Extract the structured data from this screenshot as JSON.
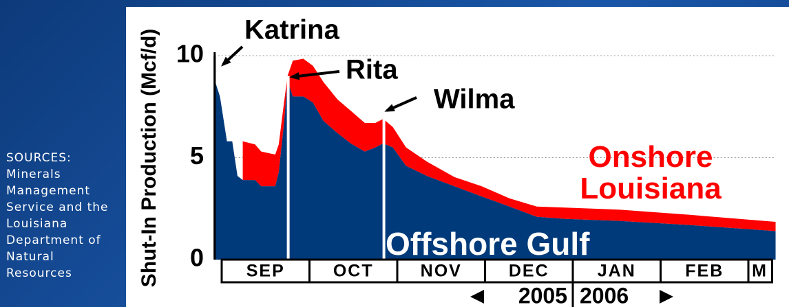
{
  "sources": "SOURCES: Minerals Management Service and the Louisiana Department of Natural Resources",
  "chart_data": {
    "type": "stacked-area",
    "y_label": "Shut-In Production (Mcf/d)",
    "x": [
      -0.08,
      -0.02,
      0.06,
      0.12,
      0.18,
      0.24,
      0.38,
      0.45,
      0.61,
      0.65,
      0.71,
      0.75,
      0.81,
      0.93,
      1.04,
      1.16,
      1.32,
      1.47,
      1.63,
      1.75,
      1.84,
      1.95,
      2.1,
      2.34,
      2.65,
      2.96,
      3.28,
      3.59,
      3.91,
      4.53,
      5.32,
      6.31
    ],
    "xlim": [
      -0.08,
      6.31
    ],
    "xticks": [
      {
        "value": 0.5,
        "label": "SEP"
      },
      {
        "value": 1.5,
        "label": "OCT"
      },
      {
        "value": 2.5,
        "label": "NOV"
      },
      {
        "value": 3.5,
        "label": "DEC"
      },
      {
        "value": 4.5,
        "label": "JAN"
      },
      {
        "value": 5.5,
        "label": "FEB"
      },
      {
        "value": 6.13,
        "label": "M"
      }
    ],
    "years": [
      "2005",
      "2006"
    ],
    "ylim": [
      0,
      10
    ],
    "yticks": [
      0,
      5,
      10
    ],
    "grid": true,
    "series": [
      {
        "name": "Offshore Gulf",
        "color": "#003a7a",
        "values": [
          8.8,
          8.0,
          5.8,
          5.8,
          4.1,
          3.9,
          3.9,
          3.6,
          3.6,
          4.3,
          6.7,
          8.8,
          8.0,
          8.0,
          7.7,
          6.8,
          6.2,
          5.7,
          5.3,
          5.5,
          5.7,
          5.5,
          4.6,
          4.1,
          3.6,
          3.1,
          2.6,
          2.1,
          2.0,
          1.9,
          1.7,
          1.4
        ]
      },
      {
        "name": "Onshore Louisiana",
        "color": "#ff0000",
        "values": [
          null,
          null,
          null,
          null,
          null,
          1.9,
          1.75,
          1.7,
          1.55,
          1.35,
          1.0,
          0.2,
          1.75,
          1.85,
          1.8,
          1.9,
          1.65,
          1.6,
          1.4,
          1.2,
          1.2,
          1.0,
          0.9,
          0.7,
          0.45,
          0.5,
          0.4,
          0.5,
          0.55,
          0.55,
          0.5,
          0.45
        ]
      }
    ],
    "annotations": [
      {
        "text": "Katrina",
        "x": -0.08
      },
      {
        "text": "Rita",
        "x": 0.75
      },
      {
        "text": "Wilma",
        "x": 1.84
      }
    ]
  }
}
